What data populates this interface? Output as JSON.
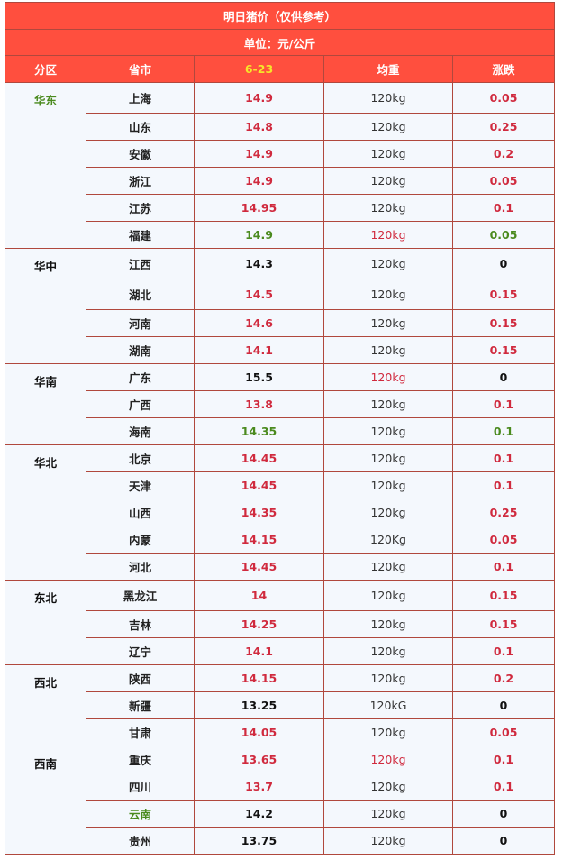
{
  "title": "明日猪价（仅供参考）",
  "unit": "单位：元/公斤",
  "headers": {
    "region": "分区",
    "province": "省市",
    "date": "6-23",
    "weight": "均重",
    "change": "涨跌"
  },
  "colors": {
    "header_bg": "#ff4f3e",
    "up": "#d02a3e",
    "down": "#4a8a1e",
    "flat": "#111111",
    "date": "#f6e52a"
  },
  "regions": [
    {
      "name": "华东",
      "color": "green",
      "rows": [
        {
          "province": "上海",
          "price": "14.9",
          "price_color": "red",
          "weight": "120kg",
          "weight_color": "normal",
          "change": "0.05",
          "change_color": "red"
        },
        {
          "province": "山东",
          "price": "14.8",
          "price_color": "red",
          "weight": "120kg",
          "weight_color": "normal",
          "change": "0.25",
          "change_color": "red"
        },
        {
          "province": "安徽",
          "price": "14.9",
          "price_color": "red",
          "weight": "120kg",
          "weight_color": "normal",
          "change": "0.2",
          "change_color": "red"
        },
        {
          "province": "浙江",
          "price": "14.9",
          "price_color": "red",
          "weight": "120kg",
          "weight_color": "normal",
          "change": "0.05",
          "change_color": "red"
        },
        {
          "province": "江苏",
          "price": "14.95",
          "price_color": "red",
          "weight": "120kg",
          "weight_color": "normal",
          "change": "0.1",
          "change_color": "red"
        },
        {
          "province": "福建",
          "price": "14.9",
          "price_color": "green",
          "weight": "120kg",
          "weight_color": "red",
          "change": "0.05",
          "change_color": "green"
        }
      ]
    },
    {
      "name": "华中",
      "color": "black",
      "rows": [
        {
          "province": "江西",
          "price": "14.3",
          "price_color": "black",
          "weight": "120kg",
          "weight_color": "normal",
          "change": "0",
          "change_color": "black"
        },
        {
          "province": "湖北",
          "price": "14.5",
          "price_color": "red",
          "weight": "120kg",
          "weight_color": "normal",
          "change": "0.15",
          "change_color": "red"
        },
        {
          "province": "河南",
          "price": "14.6",
          "price_color": "red",
          "weight": "120kg",
          "weight_color": "normal",
          "change": "0.15",
          "change_color": "red"
        },
        {
          "province": "湖南",
          "price": "14.1",
          "price_color": "red",
          "weight": "120kg",
          "weight_color": "normal",
          "change": "0.15",
          "change_color": "red"
        }
      ]
    },
    {
      "name": "华南",
      "color": "black",
      "rows": [
        {
          "province": "广东",
          "price": "15.5",
          "price_color": "black",
          "weight": "120kg",
          "weight_color": "red",
          "change": "0",
          "change_color": "black"
        },
        {
          "province": "广西",
          "price": "13.8",
          "price_color": "red",
          "weight": "120kg",
          "weight_color": "normal",
          "change": "0.1",
          "change_color": "red"
        },
        {
          "province": "海南",
          "price": "14.35",
          "price_color": "green",
          "weight": "120kg",
          "weight_color": "normal",
          "change": "0.1",
          "change_color": "green"
        }
      ]
    },
    {
      "name": "华北",
      "color": "black",
      "rows": [
        {
          "province": "北京",
          "price": "14.45",
          "price_color": "red",
          "weight": "120kg",
          "weight_color": "normal",
          "change": "0.1",
          "change_color": "red"
        },
        {
          "province": "天津",
          "price": "14.45",
          "price_color": "red",
          "weight": "120kg",
          "weight_color": "normal",
          "change": "0.1",
          "change_color": "red"
        },
        {
          "province": "山西",
          "price": "14.35",
          "price_color": "red",
          "weight": "120kg",
          "weight_color": "normal",
          "change": "0.25",
          "change_color": "red"
        },
        {
          "province": "内蒙",
          "price": "14.15",
          "price_color": "red",
          "weight": "120Kg",
          "weight_color": "normal",
          "change": "0.05",
          "change_color": "red"
        },
        {
          "province": "河北",
          "price": "14.45",
          "price_color": "red",
          "weight": "120kg",
          "weight_color": "normal",
          "change": "0.1",
          "change_color": "red"
        }
      ]
    },
    {
      "name": "东北",
      "color": "black",
      "rows": [
        {
          "province": "黑龙江",
          "price": "14",
          "price_color": "red",
          "weight": "120kg",
          "weight_color": "normal",
          "change": "0.15",
          "change_color": "red"
        },
        {
          "province": "吉林",
          "price": "14.25",
          "price_color": "red",
          "weight": "120kg",
          "weight_color": "normal",
          "change": "0.15",
          "change_color": "red"
        },
        {
          "province": "辽宁",
          "price": "14.1",
          "price_color": "red",
          "weight": "120kg",
          "weight_color": "normal",
          "change": "0.1",
          "change_color": "red"
        }
      ]
    },
    {
      "name": "西北",
      "color": "black",
      "rows": [
        {
          "province": "陕西",
          "price": "14.15",
          "price_color": "red",
          "weight": "120kg",
          "weight_color": "normal",
          "change": "0.2",
          "change_color": "red"
        },
        {
          "province": "新疆",
          "price": "13.25",
          "price_color": "black",
          "weight": "120kG",
          "weight_color": "normal",
          "change": "0",
          "change_color": "black"
        },
        {
          "province": "甘肃",
          "price": "14.05",
          "price_color": "red",
          "weight": "120kg",
          "weight_color": "normal",
          "change": "0.05",
          "change_color": "red"
        }
      ]
    },
    {
      "name": "西南",
      "color": "black",
      "rows": [
        {
          "province": "重庆",
          "price": "13.65",
          "price_color": "red",
          "weight": "120kg",
          "weight_color": "red",
          "change": "0.1",
          "change_color": "red"
        },
        {
          "province": "四川",
          "price": "13.7",
          "price_color": "red",
          "weight": "120kg",
          "weight_color": "normal",
          "change": "0.1",
          "change_color": "red"
        },
        {
          "province": "云南",
          "price": "14.2",
          "price_color": "black",
          "province_color": "green",
          "weight": "120kg",
          "weight_color": "normal",
          "change": "0",
          "change_color": "black"
        },
        {
          "province": "贵州",
          "price": "13.75",
          "price_color": "black",
          "weight": "120kg",
          "weight_color": "normal",
          "change": "0",
          "change_color": "black"
        }
      ]
    }
  ]
}
